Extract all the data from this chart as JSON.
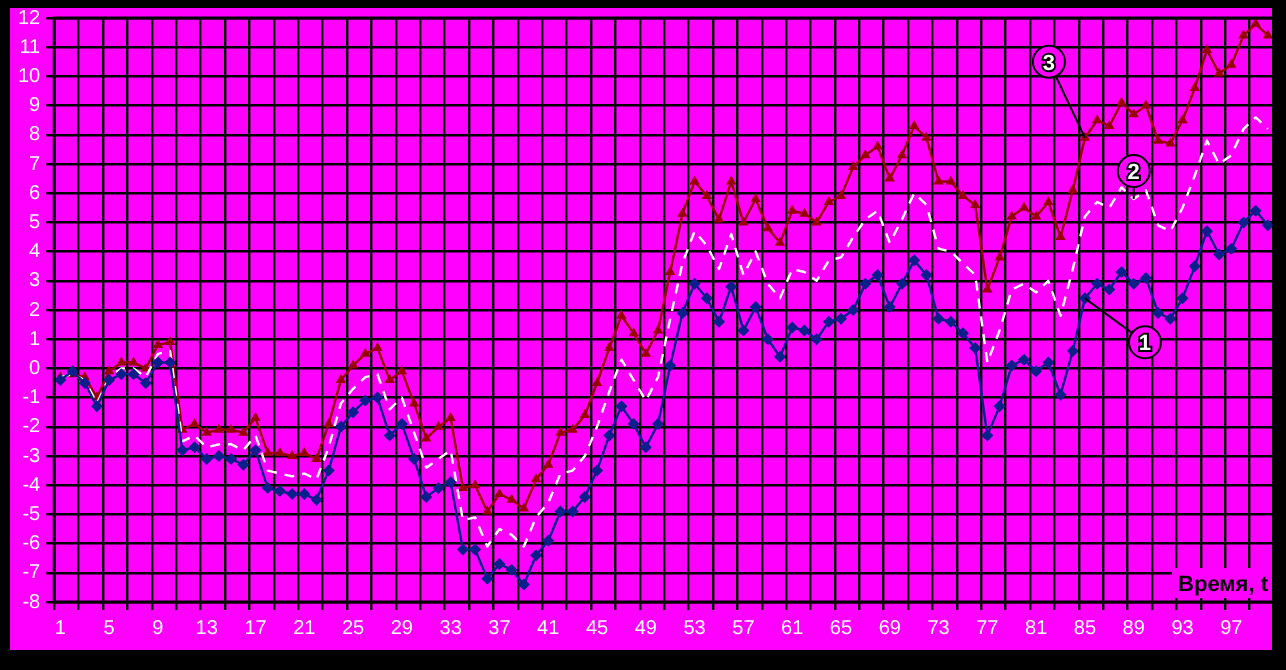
{
  "chart_data": {
    "type": "line",
    "xlabel": "Время, t",
    "categories": [
      "1",
      null,
      null,
      null,
      "5",
      null,
      null,
      null,
      "9",
      null,
      null,
      null,
      "13",
      null,
      null,
      null,
      "17",
      null,
      null,
      null,
      "21",
      null,
      null,
      null,
      "25",
      null,
      null,
      null,
      "29",
      null,
      null,
      null,
      "33",
      null,
      null,
      null,
      "37",
      null,
      null,
      null,
      "41",
      null,
      null,
      null,
      "45",
      null,
      null,
      null,
      "49",
      null,
      null,
      null,
      "53",
      null,
      null,
      null,
      "57",
      null,
      null,
      null,
      "61",
      null,
      null,
      null,
      "65",
      null,
      null,
      null,
      "69",
      null,
      null,
      null,
      "73",
      null,
      null,
      null,
      "77",
      null,
      null,
      null,
      "81",
      null,
      null,
      null,
      "85",
      null,
      null,
      null,
      "89",
      null,
      null,
      null,
      "93",
      null,
      null,
      null,
      "97",
      null,
      null,
      null
    ],
    "series": [
      {
        "name": "1",
        "color": "#0a1e8c",
        "marker": "diamond",
        "line_style": "solid",
        "values": [
          -0.4,
          -0.1,
          -0.5,
          -1.3,
          -0.4,
          -0.2,
          -0.2,
          -0.5,
          0.2,
          0.2,
          -2.8,
          -2.7,
          -3.1,
          -3,
          -3.1,
          -3.3,
          -2.8,
          -4.1,
          -4.2,
          -4.3,
          -4.3,
          -4.5,
          -3.5,
          -2,
          -1.5,
          -1.1,
          -1,
          -2.3,
          -1.9,
          -3.1,
          -4.4,
          -4.1,
          -3.9,
          -6.2,
          -6.2,
          -7.2,
          -6.7,
          -6.9,
          -7.4,
          -6.4,
          -5.9,
          -4.9,
          -4.9,
          -4.4,
          -3.5,
          -2.3,
          -1.3,
          -1.9,
          -2.7,
          -1.9,
          0.1,
          1.9,
          2.9,
          2.4,
          1.6,
          2.8,
          1.3,
          2.1,
          1,
          0.4,
          1.4,
          1.3,
          1,
          1.6,
          1.7,
          2,
          2.9,
          3.2,
          2.1,
          2.9,
          3.7,
          3.2,
          1.7,
          1.6,
          1.2,
          0.7,
          -2.3,
          -1.3,
          0.1,
          0.3,
          -0.1,
          0.2,
          -0.9,
          0.6,
          2.4,
          2.9,
          2.7,
          3.3,
          2.9,
          3.1,
          1.9,
          1.7,
          2.4,
          3.5,
          4.7,
          3.9,
          4.1,
          5,
          5.4,
          4.9
        ]
      },
      {
        "name": "2",
        "color": "#ffffff",
        "marker": "none",
        "line_style": "dashed",
        "values": [
          -0.3,
          -0.2,
          -0.4,
          -1.2,
          -0.3,
          0,
          0,
          -0.3,
          0.5,
          0.6,
          -2.5,
          -2.3,
          -2.7,
          -2.6,
          -2.6,
          -2.8,
          -2.3,
          -3.5,
          -3.6,
          -3.7,
          -3.6,
          -3.8,
          -2.7,
          -1.2,
          -0.7,
          -0.3,
          -0.2,
          -1.4,
          -1,
          -2.2,
          -3.4,
          -3.1,
          -2.8,
          -5.2,
          -5.1,
          -6.1,
          -5.5,
          -5.7,
          -6.1,
          -5.1,
          -4.6,
          -3.6,
          -3.5,
          -3,
          -2,
          -0.8,
          0.3,
          -0.4,
          -1.1,
          -0.3,
          1.7,
          3.6,
          4.7,
          4.2,
          3.4,
          4.6,
          3.2,
          4,
          2.9,
          2.4,
          3.4,
          3.3,
          3,
          3.7,
          3.8,
          4.5,
          5.1,
          5.4,
          4.3,
          5.1,
          6,
          5.6,
          4.1,
          4,
          3.6,
          3.2,
          0.2,
          1.3,
          2.7,
          2.9,
          2.6,
          3,
          1.8,
          3.4,
          5.2,
          5.7,
          5.5,
          6.2,
          5.8,
          6.1,
          4.9,
          4.7,
          5.5,
          6.6,
          7.8,
          7,
          7.3,
          8.2,
          8.6,
          8.2
        ]
      },
      {
        "name": "3",
        "color": "#990000",
        "marker": "triangle",
        "line_style": "solid",
        "values": [
          -0.3,
          -0.2,
          -0.3,
          -1,
          -0.1,
          0.2,
          0.2,
          0,
          0.8,
          0.9,
          -2.1,
          -1.9,
          -2.2,
          -2.1,
          -2.1,
          -2.2,
          -1.7,
          -2.9,
          -2.9,
          -3,
          -2.9,
          -3.1,
          -1.9,
          -0.4,
          0.1,
          0.5,
          0.7,
          -0.4,
          -0.1,
          -1.2,
          -2.4,
          -2,
          -1.7,
          -4.1,
          -4,
          -4.9,
          -4.3,
          -4.5,
          -4.8,
          -3.8,
          -3.3,
          -2.2,
          -2.1,
          -1.6,
          -0.5,
          0.7,
          1.8,
          1.2,
          0.5,
          1.3,
          3.3,
          5.3,
          6.4,
          5.9,
          5.1,
          6.4,
          5,
          5.8,
          4.8,
          4.3,
          5.4,
          5.3,
          5,
          5.7,
          5.9,
          6.9,
          7.3,
          7.6,
          6.5,
          7.3,
          8.3,
          7.9,
          6.4,
          6.4,
          5.9,
          5.6,
          2.7,
          3.8,
          5.2,
          5.5,
          5.2,
          5.7,
          4.5,
          6.1,
          7.9,
          8.5,
          8.3,
          9.1,
          8.7,
          9,
          7.8,
          7.7,
          8.5,
          9.6,
          10.9,
          10.1,
          10.4,
          11.4,
          11.8,
          11.4
        ]
      }
    ],
    "ylim": [
      -8,
      12
    ],
    "yticks": [
      -8,
      -7,
      -6,
      -5,
      -4,
      -3,
      -2,
      -1,
      0,
      1,
      2,
      3,
      4,
      5,
      6,
      7,
      8,
      9,
      10,
      11,
      12
    ],
    "grid": true,
    "legend": false
  }
}
